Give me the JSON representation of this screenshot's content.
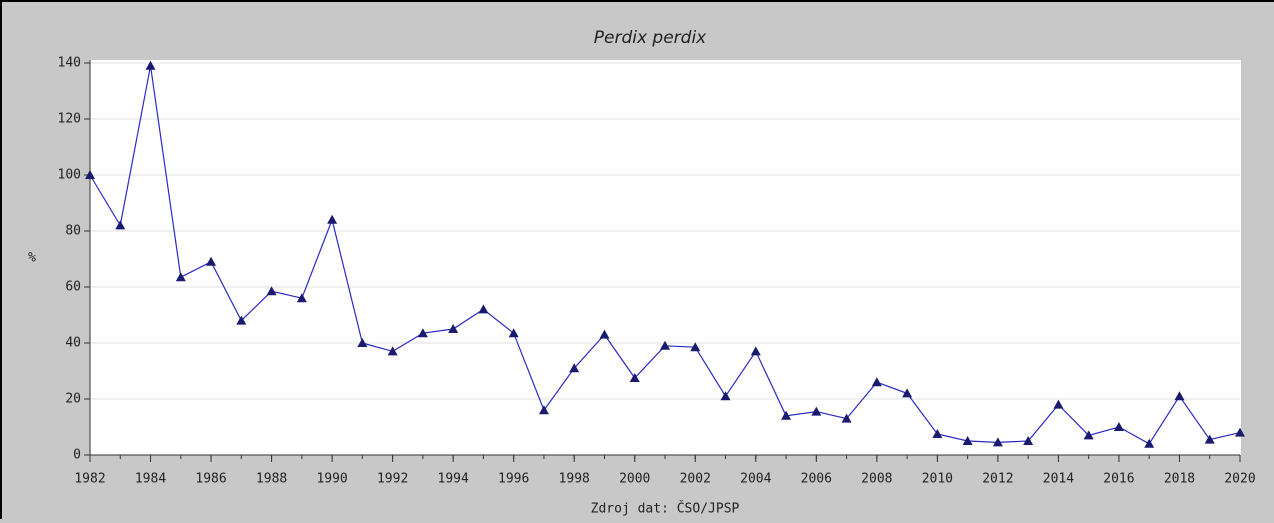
{
  "chart_data": {
    "type": "line",
    "title": "Perdix perdix",
    "y_label": "%",
    "source": "Zdroj dat: ČSO/JPSP",
    "x": [
      1982,
      1983,
      1984,
      1985,
      1986,
      1987,
      1988,
      1989,
      1990,
      1991,
      1992,
      1993,
      1994,
      1995,
      1996,
      1997,
      1998,
      1999,
      2000,
      2001,
      2002,
      2003,
      2004,
      2005,
      2006,
      2007,
      2008,
      2009,
      2010,
      2011,
      2012,
      2013,
      2014,
      2015,
      2016,
      2017,
      2018,
      2019,
      2020
    ],
    "series": [
      {
        "color": "#2a2ac8",
        "marker_color": "#1a1a6e",
        "values": [
          100,
          82,
          139,
          63.5,
          69,
          48,
          58.5,
          56,
          84,
          40,
          37,
          43.5,
          45,
          52,
          43.5,
          16,
          31,
          43,
          27.5,
          39,
          38.5,
          21,
          37,
          14,
          15.5,
          13,
          26,
          22,
          7.5,
          5,
          4.5,
          5,
          18,
          7,
          10,
          4,
          21,
          5.5,
          8
        ]
      }
    ],
    "xlim": [
      1982,
      2020
    ],
    "xticks": [
      1982,
      1984,
      1986,
      1988,
      1990,
      1992,
      1994,
      1996,
      1998,
      2000,
      2002,
      2004,
      2006,
      2008,
      2010,
      2012,
      2014,
      2016,
      2018,
      2020
    ],
    "ylim": [
      0,
      140
    ],
    "yticks": [
      0,
      20,
      40,
      60,
      80,
      100,
      120,
      140
    ],
    "grid": true
  }
}
